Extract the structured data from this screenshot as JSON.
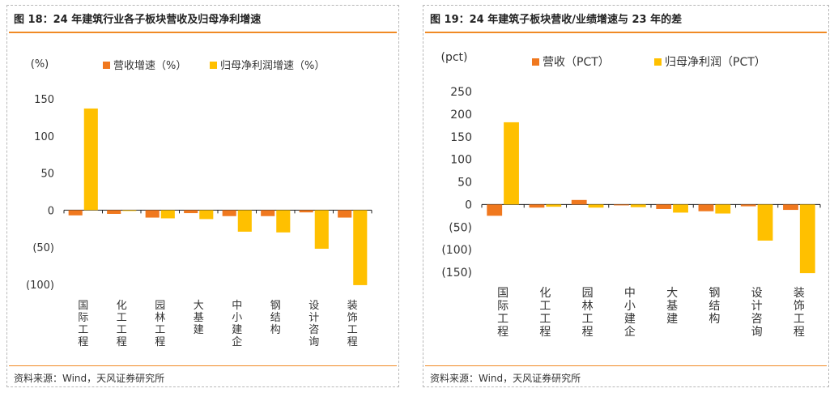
{
  "colors": {
    "revenue": "#f0781e",
    "profit": "#ffc000",
    "accent": "#f08a24"
  },
  "source_text": "资料来源：Wind，天风证券研究所",
  "panels": [
    {
      "title": "图 18：24 年建筑行业各子板块营收及归母净利增速"
    },
    {
      "title": "图 19：24 年建筑子板块营收/业绩增速与 23 年的差"
    }
  ],
  "chart_data": [
    {
      "type": "bar",
      "unit_label": "(%)",
      "categories": [
        "国际工程",
        "化工工程",
        "园林工程",
        "大基建",
        "中小建企",
        "钢结构",
        "设计咨询",
        "装饰工程"
      ],
      "series": [
        {
          "name": "营收增速（%）",
          "values": [
            -7,
            -5,
            -10,
            -4,
            -8,
            -8,
            -3,
            -10
          ]
        },
        {
          "name": "归母净利润增速（%）",
          "values": [
            137,
            -1,
            -11,
            -12,
            -29,
            -30,
            -52,
            -101
          ]
        }
      ],
      "ylim": [
        -100,
        150
      ],
      "yticks": [
        -100,
        -50,
        0,
        50,
        100,
        150
      ],
      "ytick_labels": [
        "(100)",
        "(50)",
        "0",
        "50",
        "100",
        "150"
      ],
      "legend_position": "top"
    },
    {
      "type": "bar",
      "unit_label": "(pct)",
      "categories": [
        "国际工程",
        "化工工程",
        "园林工程",
        "中小建企",
        "大基建",
        "钢结构",
        "设计咨询",
        "装饰工程"
      ],
      "series": [
        {
          "name": "营收（PCT）",
          "values": [
            -25,
            -7,
            10,
            -2,
            -10,
            -15,
            -4,
            -12
          ]
        },
        {
          "name": "归母净利润（PCT）",
          "values": [
            182,
            -5,
            -7,
            -6,
            -18,
            -20,
            -80,
            -152
          ]
        }
      ],
      "ylim": [
        -150,
        250
      ],
      "yticks": [
        -150,
        -100,
        -50,
        0,
        50,
        100,
        150,
        200,
        250
      ],
      "ytick_labels": [
        "(150)",
        "(100)",
        "(50)",
        "0",
        "50",
        "100",
        "150",
        "200",
        "250"
      ],
      "legend_position": "top"
    }
  ]
}
